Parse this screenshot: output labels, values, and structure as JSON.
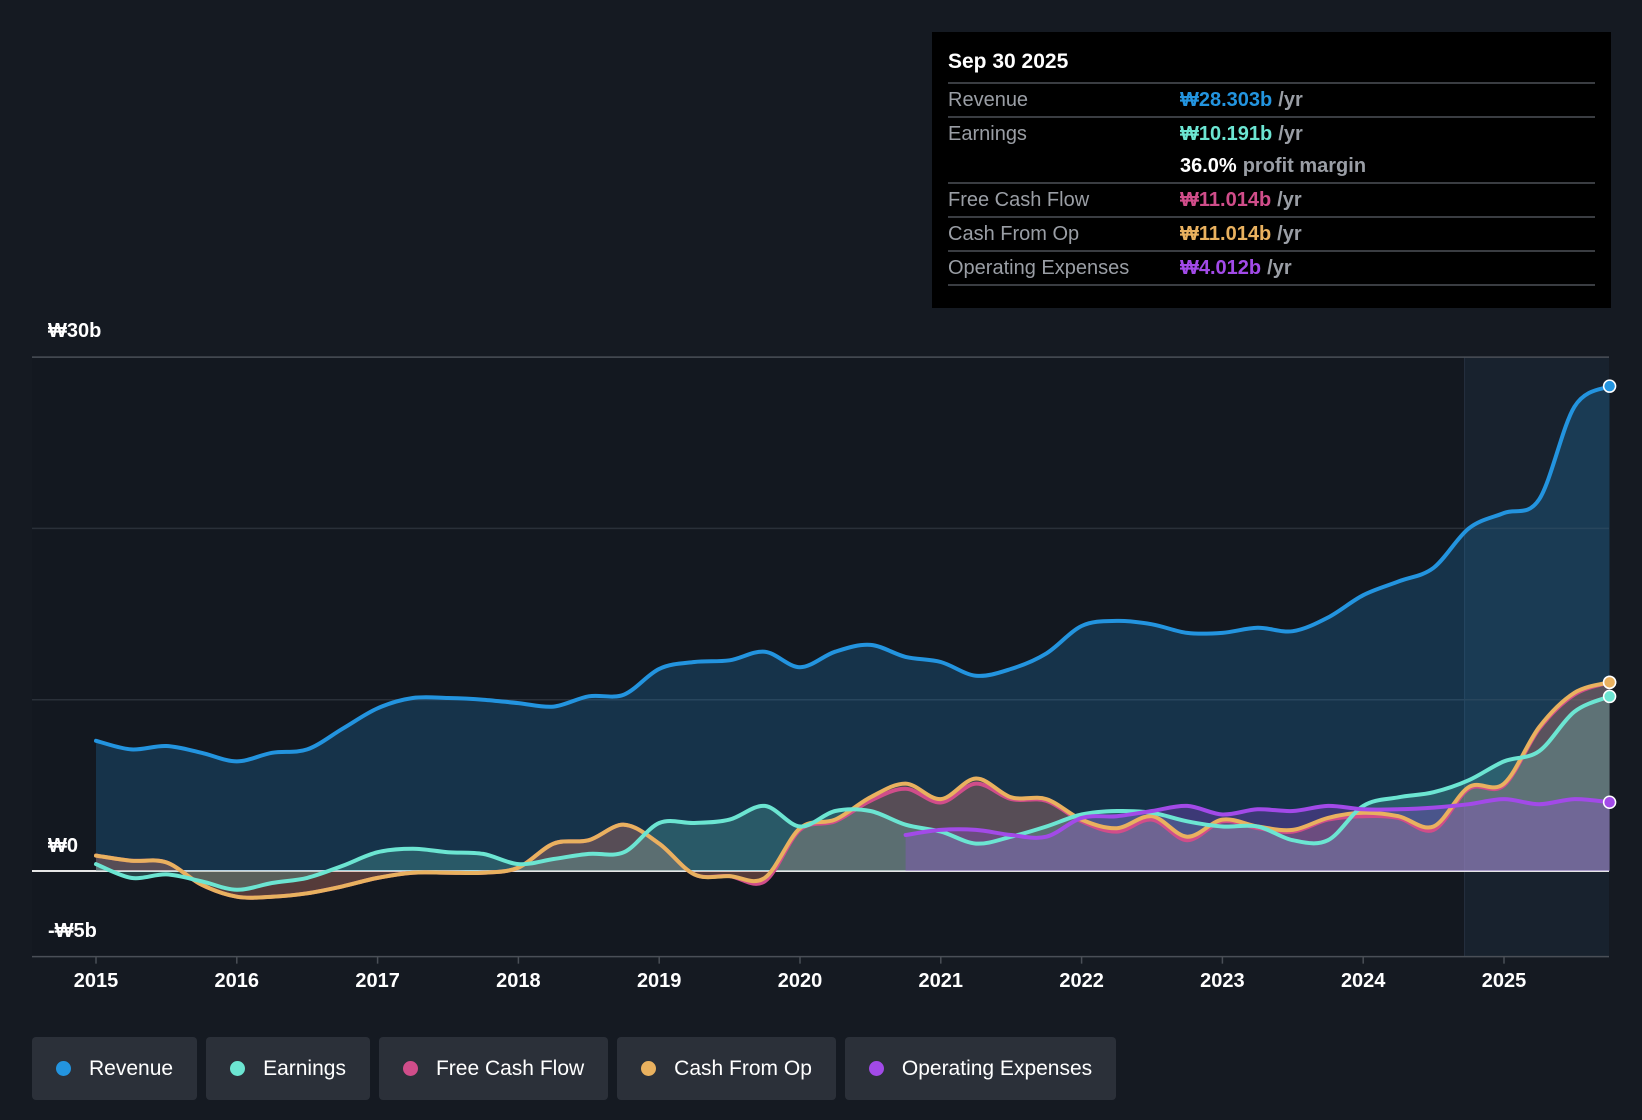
{
  "tooltip": {
    "date": "Sep 30 2025",
    "rows": [
      {
        "label": "Revenue",
        "value": "₩28.303b",
        "unit": "/yr"
      },
      {
        "label": "Earnings",
        "value": "₩10.191b",
        "unit": "/yr"
      },
      {
        "label": "",
        "value": "36.0%",
        "unit": "profit margin"
      },
      {
        "label": "Free Cash Flow",
        "value": "₩11.014b",
        "unit": "/yr"
      },
      {
        "label": "Cash From Op",
        "value": "₩11.014b",
        "unit": "/yr"
      },
      {
        "label": "Operating Expenses",
        "value": "₩4.012b",
        "unit": "/yr"
      }
    ]
  },
  "legend": [
    {
      "label": "Revenue",
      "color": "#2394df"
    },
    {
      "label": "Earnings",
      "color": "#6ce5d2"
    },
    {
      "label": "Free Cash Flow",
      "color": "#d04d8a"
    },
    {
      "label": "Cash From Op",
      "color": "#e9b15f"
    },
    {
      "label": "Operating Expenses",
      "color": "#a24ae8"
    }
  ],
  "chart_data": {
    "type": "line",
    "title": "",
    "xlabel": "",
    "ylabel": "",
    "ylim": [
      -5,
      30
    ],
    "xlim": [
      2014.55,
      2025.75
    ],
    "y_ticks": [
      {
        "value": 30,
        "label": "₩30b"
      },
      {
        "value": 0,
        "label": "₩0"
      },
      {
        "value": -5,
        "label": "-₩5b"
      }
    ],
    "gridlines": [
      30,
      20,
      10,
      0,
      -5
    ],
    "x_ticks": [
      {
        "value": 2015,
        "label": "2015"
      },
      {
        "value": 2016,
        "label": "2016"
      },
      {
        "value": 2017,
        "label": "2017"
      },
      {
        "value": 2018,
        "label": "2018"
      },
      {
        "value": 2019,
        "label": "2019"
      },
      {
        "value": 2020,
        "label": "2020"
      },
      {
        "value": 2021,
        "label": "2021"
      },
      {
        "value": 2022,
        "label": "2022"
      },
      {
        "value": 2023,
        "label": "2023"
      },
      {
        "value": 2024,
        "label": "2024"
      },
      {
        "value": 2025,
        "label": "2025"
      }
    ],
    "highlight_from": 2024.72,
    "series": [
      {
        "name": "Revenue",
        "color": "#2394df",
        "x_start": 2015.0,
        "x_step": 0.25,
        "values": [
          7.6,
          7.1,
          7.3,
          6.9,
          6.4,
          6.9,
          7.1,
          8.3,
          9.5,
          10.1,
          10.1,
          10.0,
          9.8,
          9.6,
          10.2,
          10.3,
          11.8,
          12.2,
          12.3,
          12.8,
          11.9,
          12.8,
          13.2,
          12.5,
          12.2,
          11.4,
          11.8,
          12.7,
          14.3,
          14.6,
          14.4,
          13.9,
          13.9,
          14.2,
          14.0,
          14.8,
          16.1,
          16.9,
          17.7,
          20.0,
          20.9,
          21.7,
          27.1,
          28.303
        ]
      },
      {
        "name": "Free Cash Flow",
        "color": "#d04d8a",
        "x_start": 2015.0,
        "x_step": 0.25,
        "values": [
          0.9,
          0.6,
          0.5,
          -0.8,
          -1.5,
          -1.5,
          -1.3,
          -0.9,
          -0.4,
          -0.1,
          -0.1,
          -0.1,
          0.2,
          1.6,
          1.8,
          2.7,
          1.6,
          -0.2,
          -0.3,
          -0.6,
          2.4,
          2.9,
          4.1,
          4.8,
          4.0,
          5.1,
          4.2,
          4.1,
          2.9,
          2.3,
          3.0,
          1.8,
          2.9,
          2.5,
          2.3,
          3.0,
          3.2,
          3.1,
          2.4,
          4.8,
          5.0,
          8.3,
          10.3,
          11.014
        ]
      },
      {
        "name": "Cash From Op",
        "color": "#e9b15f",
        "x_start": 2015.0,
        "x_step": 0.25,
        "values": [
          0.9,
          0.6,
          0.5,
          -0.8,
          -1.5,
          -1.5,
          -1.3,
          -0.9,
          -0.4,
          -0.1,
          -0.1,
          -0.1,
          0.2,
          1.6,
          1.8,
          2.7,
          1.6,
          -0.2,
          -0.3,
          -0.4,
          2.5,
          3.0,
          4.3,
          5.1,
          4.2,
          5.4,
          4.3,
          4.2,
          3.0,
          2.5,
          3.2,
          2.0,
          3.0,
          2.6,
          2.4,
          3.1,
          3.4,
          3.2,
          2.6,
          4.9,
          5.1,
          8.4,
          10.4,
          11.014
        ]
      },
      {
        "name": "Earnings",
        "color": "#6ce5d2",
        "x_start": 2015.0,
        "x_step": 0.25,
        "values": [
          0.4,
          -0.4,
          -0.2,
          -0.6,
          -1.1,
          -0.7,
          -0.4,
          0.3,
          1.1,
          1.3,
          1.1,
          1.0,
          0.4,
          0.7,
          1.0,
          1.1,
          2.8,
          2.8,
          3.0,
          3.8,
          2.6,
          3.5,
          3.5,
          2.7,
          2.3,
          1.6,
          2.0,
          2.6,
          3.3,
          3.5,
          3.4,
          2.9,
          2.6,
          2.6,
          1.8,
          1.8,
          3.8,
          4.3,
          4.6,
          5.3,
          6.4,
          7.0,
          9.3,
          10.191
        ]
      },
      {
        "name": "Operating Expenses",
        "color": "#a24ae8",
        "x_start": 2020.75,
        "x_step": 0.25,
        "values": [
          2.1,
          2.4,
          2.4,
          2.1,
          2.0,
          3.1,
          3.2,
          3.5,
          3.8,
          3.3,
          3.6,
          3.5,
          3.8,
          3.6,
          3.6,
          3.7,
          3.9,
          4.2,
          3.9,
          4.2,
          4.012
        ]
      }
    ]
  }
}
